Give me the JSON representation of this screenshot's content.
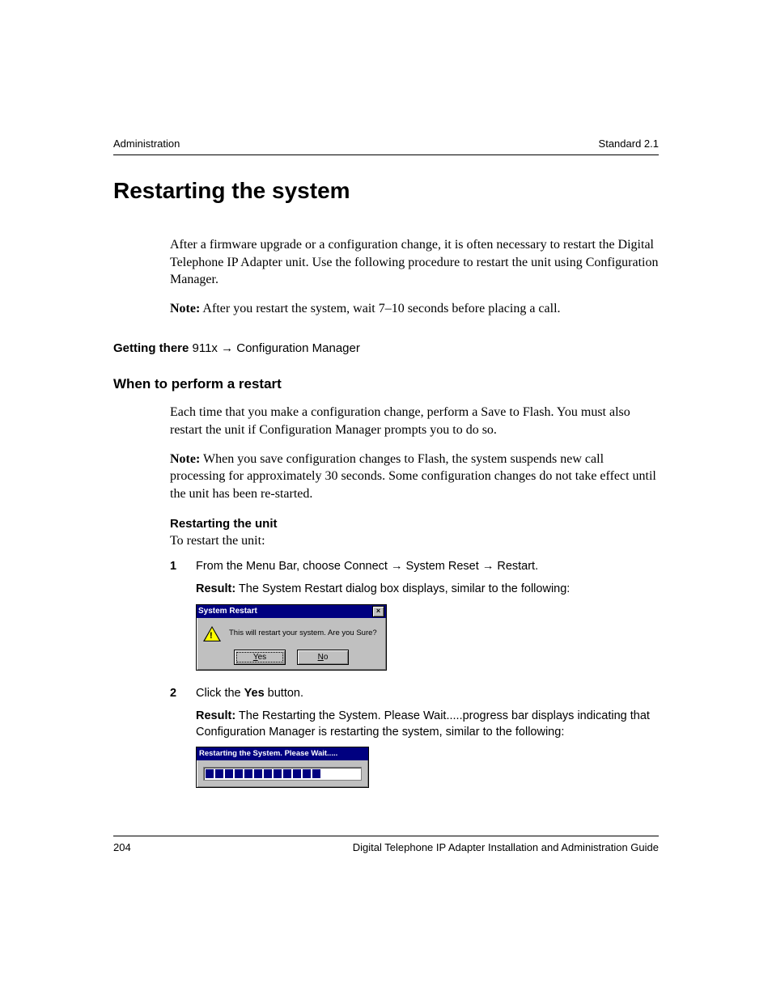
{
  "header": {
    "left": "Administration",
    "right": "Standard 2.1"
  },
  "title": "Restarting the system",
  "intro": {
    "p1": "After a firmware upgrade or a configuration change, it is often necessary to restart the Digital Telephone IP Adapter unit. Use the following procedure to restart the unit using Configuration Manager.",
    "note_label": "Note:",
    "note_text": " After you restart the system, wait 7–10 seconds before placing a call."
  },
  "getting_there": {
    "label": "Getting there",
    "path_prefix": "  911x ",
    "arrow": "→",
    "path_suffix": " Configuration Manager"
  },
  "when": {
    "heading": "When to perform a restart",
    "p1": "Each time that you make a configuration change, perform a Save to Flash. You must also restart the unit if Configuration Manager prompts you to do so.",
    "note_label": "Note:",
    "note_text": " When you save configuration changes to Flash, the system suspends new call processing for approximately 30 seconds. Some configuration changes do not take effect until the unit has been re-started."
  },
  "restart": {
    "heading": "Restarting the unit",
    "lead": "To restart the unit:",
    "step1": {
      "num": "1",
      "text_prefix": "From the Menu Bar, choose Connect ",
      "arrow": "→",
      "text_mid": " System Reset ",
      "text_suffix": " Restart.",
      "result_label": "Result:",
      "result_text": " The System Restart dialog box displays, similar to the following:"
    },
    "step2": {
      "num": "2",
      "text_prefix": "Click the ",
      "bold_word": "Yes",
      "text_suffix": " button.",
      "result_label": "Result:",
      "result_text": " The Restarting the System. Please Wait.....progress bar displays indicating that Configuration Manager is restarting the system, similar to the following:"
    }
  },
  "dialog": {
    "title": "System Restart",
    "close_glyph": "×",
    "message": "This will restart your system. Are you Sure?",
    "yes_u": "Y",
    "yes_rest": "es",
    "no_u": "N",
    "no_rest": "o"
  },
  "progress": {
    "title": "Restarting the System. Please Wait.....",
    "segments": 12
  },
  "footer": {
    "page": "204",
    "doc": "Digital Telephone IP Adapter Installation and Administration Guide"
  },
  "colors": {
    "titlebar": "#000080",
    "dialog_bg": "#c0c0c0",
    "page_bg": "#ffffff",
    "text": "#000000",
    "warn_fill": "#ffff00"
  }
}
